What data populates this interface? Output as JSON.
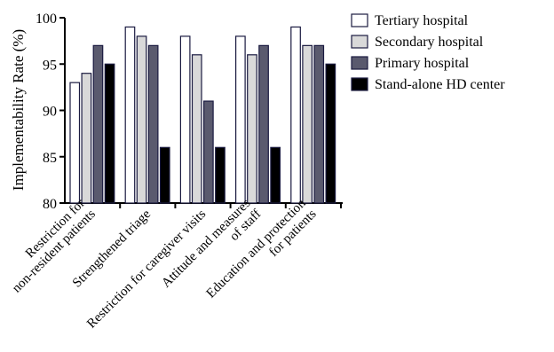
{
  "chart_data": {
    "type": "bar",
    "title": "",
    "xlabel": "",
    "ylabel": "Implementability Rate (%)",
    "ylim": [
      80,
      100
    ],
    "yticks": [
      80,
      85,
      90,
      95,
      100
    ],
    "grid": false,
    "legend_position": "right",
    "categories": [
      {
        "lines": [
          "Restriction for",
          "non-resident patients"
        ]
      },
      {
        "lines": [
          "Strengthened triage"
        ]
      },
      {
        "lines": [
          "Restriction for caregiver visits"
        ]
      },
      {
        "lines": [
          "Attitude and measures",
          "of staff"
        ]
      },
      {
        "lines": [
          "Education and protection",
          "for patients"
        ]
      }
    ],
    "series": [
      {
        "name": "Tertiary hospital",
        "color": "#ffffff",
        "values": [
          93,
          99,
          98,
          98,
          99
        ]
      },
      {
        "name": "Secondary hospital",
        "color": "#d9d9d9",
        "values": [
          94,
          98,
          96,
          96,
          97
        ]
      },
      {
        "name": "Primary hospital",
        "color": "#5a5a6e",
        "values": [
          97,
          97,
          91,
          97,
          97
        ]
      },
      {
        "name": "Stand-alone HD center",
        "color": "#000000",
        "values": [
          95,
          86,
          86,
          86,
          95
        ]
      }
    ],
    "bar_stroke": "#1a1a40"
  }
}
